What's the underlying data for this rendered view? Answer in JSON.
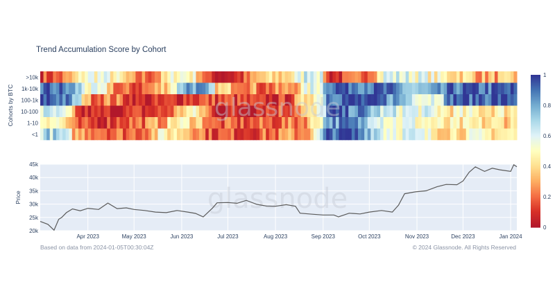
{
  "title": "Trend Accumulation Score by Cohort",
  "watermark": "glassnode",
  "footer": {
    "left": "Based on data from 2024-01-05T00:30:04Z",
    "right": "© 2024 Glassnode. All Rights Reserved"
  },
  "chart_data": [
    {
      "type": "heatmap",
      "ylabel": "Cohorts by BTC",
      "rows": [
        ">10k",
        "1k-10k",
        "100-1k",
        "10-100",
        "1-10",
        "<1"
      ],
      "colorscale": [
        "#b2182b",
        "#d73027",
        "#f46d43",
        "#fdae61",
        "#fee090",
        "#ffffbf",
        "#e0f3f8",
        "#abd9e9",
        "#74add1",
        "#4575b4",
        "#313695"
      ],
      "colorbar_ticks": [
        0,
        0.2,
        0.4,
        0.6,
        0.8,
        1
      ],
      "colorbar_range": [
        0,
        1
      ],
      "segments": [
        [
          [
            0,
            0.15
          ],
          [
            0.09,
            0.55
          ],
          [
            0.19,
            0.2
          ],
          [
            0.28,
            0.55
          ],
          [
            0.35,
            0.05
          ],
          [
            0.46,
            0.35
          ],
          [
            0.56,
            0.7
          ],
          [
            0.6,
            0.1
          ],
          [
            0.72,
            0.6
          ],
          [
            0.83,
            0.45
          ],
          [
            0.92,
            0.3
          ]
        ],
        [
          [
            0,
            0.9
          ],
          [
            0.1,
            0.5
          ],
          [
            0.16,
            0.15
          ],
          [
            0.3,
            0.85
          ],
          [
            0.37,
            0.35
          ],
          [
            0.46,
            0.2
          ],
          [
            0.56,
            0.55
          ],
          [
            0.6,
            0.95
          ],
          [
            0.78,
            0.7
          ],
          [
            0.86,
            0.9
          ]
        ],
        [
          [
            0,
            0.95
          ],
          [
            0.1,
            0.25
          ],
          [
            0.2,
            0.05
          ],
          [
            0.3,
            0.15
          ],
          [
            0.46,
            0.05
          ],
          [
            0.56,
            0.5
          ],
          [
            0.6,
            0.95
          ],
          [
            0.8,
            0.6
          ],
          [
            0.86,
            0.95
          ]
        ],
        [
          [
            0,
            0.6
          ],
          [
            0.08,
            0.05
          ],
          [
            0.22,
            0.1
          ],
          [
            0.3,
            0.45
          ],
          [
            0.36,
            0.05
          ],
          [
            0.46,
            0.15
          ],
          [
            0.55,
            0.35
          ],
          [
            0.6,
            0.9
          ],
          [
            0.72,
            0.6
          ],
          [
            0.85,
            0.45
          ]
        ],
        [
          [
            0,
            0.55
          ],
          [
            0.07,
            0.1
          ],
          [
            0.17,
            0.2
          ],
          [
            0.28,
            0.45
          ],
          [
            0.36,
            0.15
          ],
          [
            0.5,
            0.2
          ],
          [
            0.6,
            0.85
          ],
          [
            0.73,
            0.55
          ],
          [
            0.84,
            0.4
          ]
        ],
        [
          [
            0,
            0.7
          ],
          [
            0.07,
            0.3
          ],
          [
            0.15,
            0.2
          ],
          [
            0.25,
            0.45
          ],
          [
            0.35,
            0.15
          ],
          [
            0.52,
            0.25
          ],
          [
            0.6,
            0.95
          ],
          [
            0.72,
            0.6
          ],
          [
            0.82,
            0.45
          ]
        ]
      ]
    },
    {
      "type": "line",
      "ylabel": "Price",
      "xlabel": "",
      "x_range": [
        "2023-03-01",
        "2024-01-05"
      ],
      "ylim": [
        20000,
        45000
      ],
      "y_ticks": [
        20000,
        25000,
        30000,
        35000,
        40000,
        45000
      ],
      "y_tick_labels": [
        "20k",
        "25k",
        "30k",
        "35k",
        "40k",
        "45k"
      ],
      "x_ticks": [
        "2023-04-01",
        "2023-05-01",
        "2023-06-01",
        "2023-07-01",
        "2023-08-01",
        "2023-09-01",
        "2023-10-01",
        "2023-11-01",
        "2023-12-01",
        "2024-01-01"
      ],
      "x_tick_labels": [
        "Apr 2023",
        "May 2023",
        "Jun 2023",
        "Jul 2023",
        "Aug 2023",
        "Sep 2023",
        "Oct 2023",
        "Nov 2023",
        "Dec 2023",
        "Jan 2024"
      ],
      "line_color": "#5a5a5a",
      "plot_bg": "#e5ecf6",
      "series": [
        {
          "x": [
            "2023-03-01",
            "2023-03-06",
            "2023-03-10",
            "2023-03-13",
            "2023-03-15",
            "2023-03-18",
            "2023-03-22",
            "2023-03-27",
            "2023-04-01",
            "2023-04-08",
            "2023-04-14",
            "2023-04-20",
            "2023-04-26",
            "2023-05-01",
            "2023-05-08",
            "2023-05-15",
            "2023-05-22",
            "2023-05-29",
            "2023-06-05",
            "2023-06-10",
            "2023-06-15",
            "2023-06-21",
            "2023-06-24",
            "2023-07-01",
            "2023-07-07",
            "2023-07-13",
            "2023-07-20",
            "2023-07-26",
            "2023-08-01",
            "2023-08-08",
            "2023-08-14",
            "2023-08-17",
            "2023-08-25",
            "2023-09-01",
            "2023-09-08",
            "2023-09-11",
            "2023-09-18",
            "2023-09-25",
            "2023-10-01",
            "2023-10-09",
            "2023-10-16",
            "2023-10-20",
            "2023-10-24",
            "2023-10-31",
            "2023-11-07",
            "2023-11-14",
            "2023-11-20",
            "2023-11-27",
            "2023-12-01",
            "2023-12-05",
            "2023-12-09",
            "2023-12-15",
            "2023-12-20",
            "2023-12-25",
            "2024-01-01",
            "2024-01-03",
            "2024-01-05"
          ],
          "y": [
            23500,
            22400,
            20200,
            24300,
            25000,
            26800,
            28200,
            27500,
            28400,
            28000,
            30400,
            28300,
            28600,
            28000,
            27600,
            27000,
            26800,
            27600,
            27000,
            26500,
            25200,
            28500,
            30500,
            30600,
            30300,
            31400,
            29900,
            29300,
            29200,
            29800,
            29200,
            26600,
            26200,
            25900,
            25900,
            25200,
            26600,
            26300,
            27000,
            27600,
            27000,
            29600,
            33900,
            34600,
            35000,
            36500,
            37400,
            37300,
            38700,
            42000,
            44000,
            42300,
            43500,
            42900,
            42300,
            44800,
            44000
          ]
        }
      ]
    }
  ]
}
